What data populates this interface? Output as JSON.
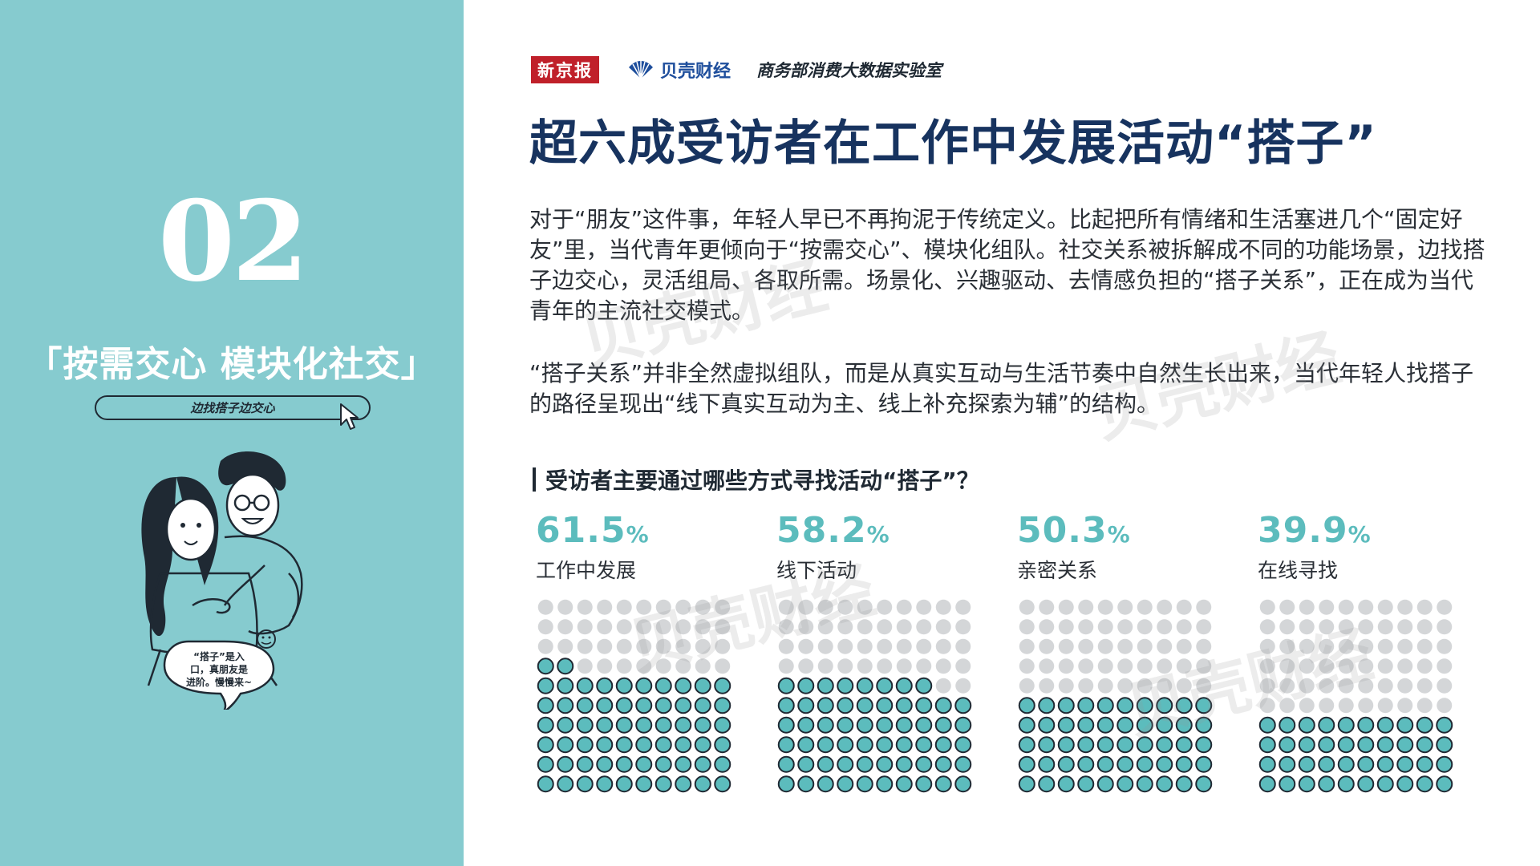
{
  "left_panel": {
    "section_number": "02",
    "section_title": "「按需交心 模块化社交」",
    "search_text": "边找搭子边交心",
    "speech_bubble": [
      "“搭子”是入",
      "口，真朋友是",
      "进阶。慢慢来~"
    ]
  },
  "header": {
    "brand_1": "新京报",
    "brand_2": "贝壳财经",
    "brand_3": "商务部消费大数据实验室",
    "title": "超六成受访者在工作中发展活动“搭子”"
  },
  "body": {
    "paragraph_1": "对于“朋友”这件事，年轻人早已不再拘泥于传统定义。比起把所有情绪和生活塞进几个“固定好友”里，当代青年更倾向于“按需交心”、模块化组队。社交关系被拆解成不同的功能场景，边找搭子边交心，灵活组局、各取所需。场景化、兴趣驱动、去情感负担的“搭子关系”，正在成为当代青年的主流社交模式。",
    "paragraph_2": "“搭子关系”并非全然虚拟组队，而是从真实互动与生活节奏中自然生长出来，当代年轻人找搭子的路径呈现出“线下真实互动为主、线上补充探索为辅”的结构。"
  },
  "watermark": "贝壳财经",
  "colors": {
    "panel": "#86cbcf",
    "accent": "#5cbcbd",
    "dot_empty": "#d4d6d8",
    "title": "#17335f",
    "brand_red": "#c0202a"
  },
  "chart_data": {
    "type": "waffle",
    "title": "受访者主要通过哪些方式寻找活动“搭子”？",
    "unit": "%",
    "grid": [
      10,
      10
    ],
    "categories": [
      "工作中发展",
      "线下活动",
      "亲密关系",
      "在线寻找"
    ],
    "values": [
      61.5,
      58.2,
      50.3,
      39.9
    ],
    "value_labels": [
      "61.5",
      "58.2",
      "50.3",
      "39.9"
    ]
  }
}
